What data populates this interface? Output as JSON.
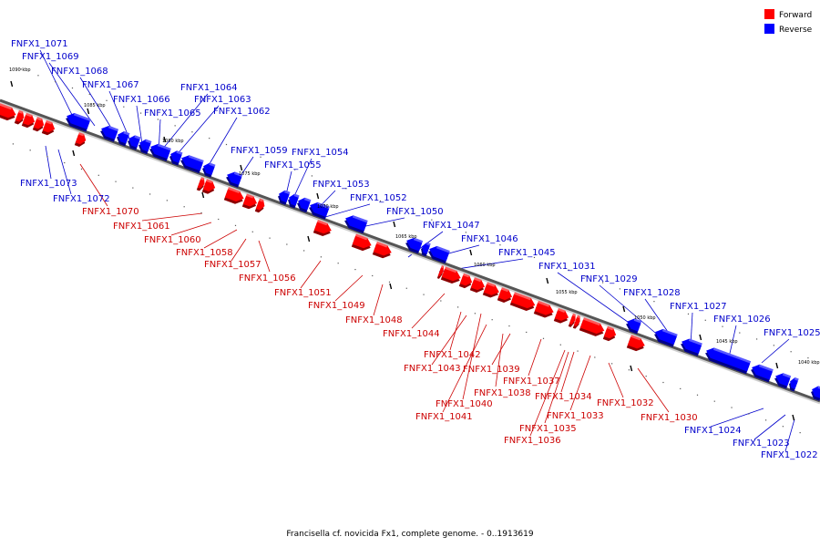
{
  "legend": [
    {
      "label": "Forward",
      "color": "#ff0000"
    },
    {
      "label": "Reverse",
      "color": "#0000ff"
    }
  ],
  "caption": "Francisella cf. novicida Fx1, complete genome. - 0..1913619",
  "ticks": [
    "1090 kbp",
    "1085 kbp",
    "1080 kbp",
    "1075 kbp",
    "1070 kbp",
    "1065 kbp",
    "1060 kbp",
    "1055 kbp",
    "1050 kbp",
    "1045 kbp",
    "1040 kbp"
  ],
  "reverse_labels": [
    "FNFX1_1071",
    "FNFX1_1069",
    "FNFX1_1068",
    "FNFX1_1067",
    "FNFX1_1066",
    "FNFX1_1065",
    "FNFX1_1064",
    "FNFX1_1063",
    "FNFX1_1062",
    "FNFX1_1059",
    "FNFX1_1054",
    "FNFX1_1055",
    "FNFX1_1053",
    "FNFX1_1052",
    "FNFX1_1050",
    "FNFX1_1047",
    "FNFX1_1046",
    "FNFX1_1045",
    "FNFX1_1031",
    "FNFX1_1029",
    "FNFX1_1028",
    "FNFX1_1027",
    "FNFX1_1026",
    "FNFX1_1025",
    "FNFX1_1073",
    "FNFX1_1072",
    "FNFX1_1024",
    "FNFX1_1023",
    "FNFX1_1022"
  ],
  "forward_labels": [
    "FNFX1_1070",
    "FNFX1_1061",
    "FNFX1_1060",
    "FNFX1_1058",
    "FNFX1_1057",
    "FNFX1_1056",
    "FNFX1_1051",
    "FNFX1_1049",
    "FNFX1_1048",
    "FNFX1_1044",
    "FNFX1_1042",
    "FNFX1_1043",
    "FNFX1_1039",
    "FNFX1_1038",
    "FNFX1_1040",
    "FNFX1_1041",
    "FNFX1_1037",
    "FNFX1_1034",
    "FNFX1_1033",
    "FNFX1_1035",
    "FNFX1_1036",
    "FNFX1_1032",
    "FNFX1_1030"
  ]
}
